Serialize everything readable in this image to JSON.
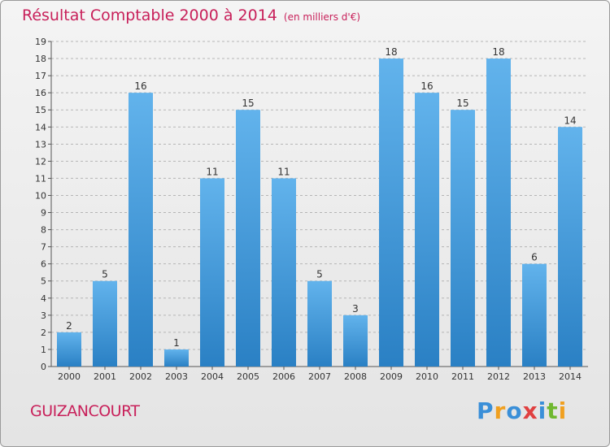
{
  "title": "Résultat Comptable 2000 à 2014",
  "subtitle": "(en milliers d'€)",
  "commune": "GUIZANCOURT",
  "logo": {
    "text": "Proxiti",
    "colors": [
      "#3a8fd8",
      "#f0a020",
      "#3a8fd8",
      "#e04040",
      "#3a8fd8",
      "#70b830",
      "#f0a020"
    ]
  },
  "colors": {
    "title": "#c8205a",
    "bar_light": "#62b3ec",
    "bar_dark": "#2a80c4",
    "grid": "#b5b5b5"
  },
  "chart_data": {
    "type": "bar",
    "title": "Résultat Comptable 2000 à 2014",
    "xlabel": "",
    "ylabel": "",
    "categories": [
      "2000",
      "2001",
      "2002",
      "2003",
      "2004",
      "2005",
      "2006",
      "2007",
      "2008",
      "2009",
      "2010",
      "2011",
      "2012",
      "2013",
      "2014"
    ],
    "values": [
      2,
      5,
      16,
      1,
      11,
      15,
      11,
      5,
      3,
      18,
      16,
      15,
      18,
      6,
      14
    ],
    "ylim": [
      0,
      19
    ],
    "yticks": [
      0,
      1,
      2,
      3,
      4,
      5,
      6,
      7,
      8,
      9,
      10,
      11,
      12,
      13,
      14,
      15,
      16,
      17,
      18,
      19
    ],
    "grid": true
  }
}
